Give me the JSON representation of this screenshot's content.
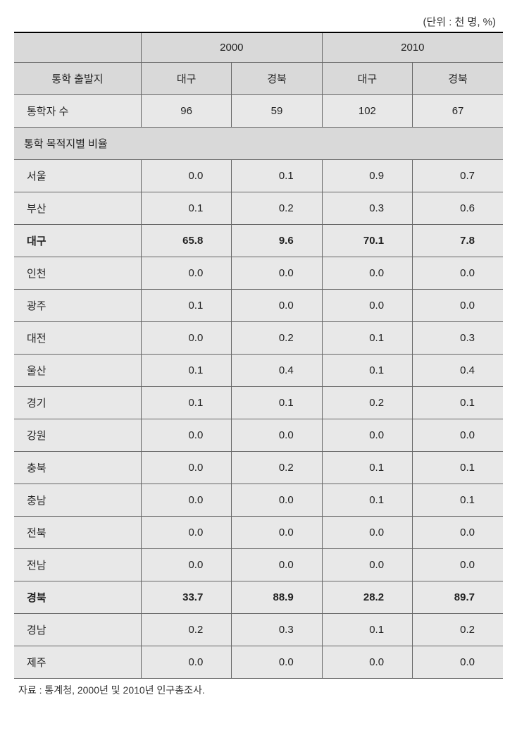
{
  "unit_label": "(단위 : 천 명, %)",
  "header": {
    "blank": "",
    "year_2000": "2000",
    "year_2010": "2010",
    "origin_title": "통학 출발지",
    "daegu": "대구",
    "gyeongbuk": "경북"
  },
  "count_row": {
    "label": "통학자 수",
    "values": [
      "96",
      "59",
      "102",
      "67"
    ]
  },
  "section_label": "통학 목적지별 비율",
  "rows": [
    {
      "label": "서울",
      "bold": false,
      "values": [
        "0.0",
        "0.1",
        "0.9",
        "0.7"
      ]
    },
    {
      "label": "부산",
      "bold": false,
      "values": [
        "0.1",
        "0.2",
        "0.3",
        "0.6"
      ]
    },
    {
      "label": "대구",
      "bold": true,
      "values": [
        "65.8",
        "9.6",
        "70.1",
        "7.8"
      ]
    },
    {
      "label": "인천",
      "bold": false,
      "values": [
        "0.0",
        "0.0",
        "0.0",
        "0.0"
      ]
    },
    {
      "label": "광주",
      "bold": false,
      "values": [
        "0.1",
        "0.0",
        "0.0",
        "0.0"
      ]
    },
    {
      "label": "대전",
      "bold": false,
      "values": [
        "0.0",
        "0.2",
        "0.1",
        "0.3"
      ]
    },
    {
      "label": "울산",
      "bold": false,
      "values": [
        "0.1",
        "0.4",
        "0.1",
        "0.4"
      ]
    },
    {
      "label": "경기",
      "bold": false,
      "values": [
        "0.1",
        "0.1",
        "0.2",
        "0.1"
      ]
    },
    {
      "label": "강원",
      "bold": false,
      "values": [
        "0.0",
        "0.0",
        "0.0",
        "0.0"
      ]
    },
    {
      "label": "충북",
      "bold": false,
      "values": [
        "0.0",
        "0.2",
        "0.1",
        "0.1"
      ]
    },
    {
      "label": "충남",
      "bold": false,
      "values": [
        "0.0",
        "0.0",
        "0.1",
        "0.1"
      ]
    },
    {
      "label": "전북",
      "bold": false,
      "values": [
        "0.0",
        "0.0",
        "0.0",
        "0.0"
      ]
    },
    {
      "label": "전남",
      "bold": false,
      "values": [
        "0.0",
        "0.0",
        "0.0",
        "0.0"
      ]
    },
    {
      "label": "경북",
      "bold": true,
      "values": [
        "33.7",
        "88.9",
        "28.2",
        "89.7"
      ]
    },
    {
      "label": "경남",
      "bold": false,
      "values": [
        "0.2",
        "0.3",
        "0.1",
        "0.2"
      ]
    },
    {
      "label": "제주",
      "bold": false,
      "values": [
        "0.0",
        "0.0",
        "0.0",
        "0.0"
      ]
    }
  ],
  "footnote": "자료 : 통계청, 2000년 및 2010년 인구총조사.",
  "col_widths": [
    "26%",
    "18.5%",
    "18.5%",
    "18.5%",
    "18.5%"
  ],
  "colors": {
    "header_bg": "#d9d9d9",
    "cell_bg": "#e8e8e8",
    "border": "#666666",
    "top_border": "#000000",
    "text": "#222222"
  }
}
